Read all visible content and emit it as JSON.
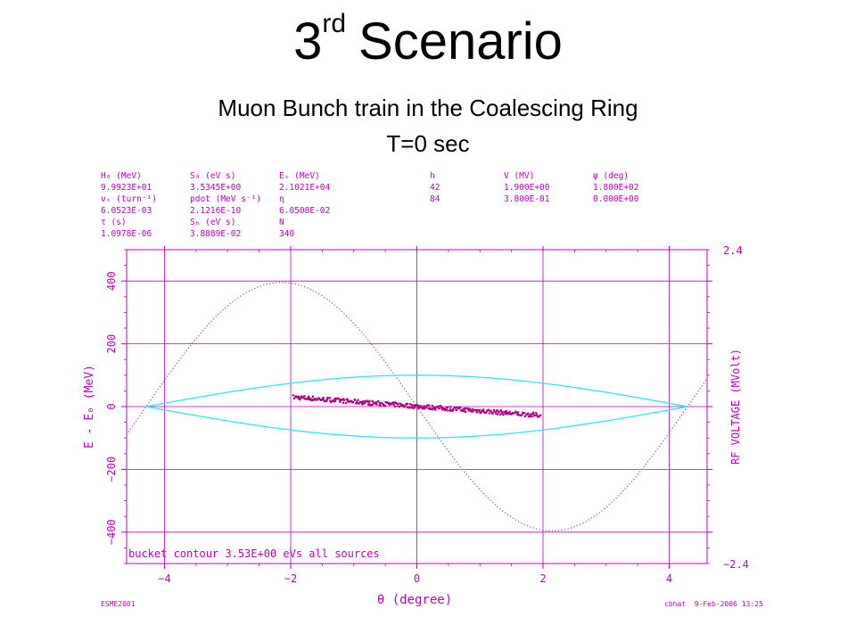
{
  "slide": {
    "title_main": "3",
    "title_sup": "rd",
    "title_rest": "Scenario",
    "subtitle_line1": "Muon Bunch train in the Coalescing Ring",
    "subtitle_line2": "T=0 sec"
  },
  "header_table": {
    "rows": [
      [
        "H₀ (MeV)",
        "S₀ (eV s)",
        "Eₛ (MeV)",
        "h",
        "V (MV)",
        "ψ (deg)"
      ],
      [
        "9.9923E+01",
        "3.5345E+00",
        "2.1021E+04",
        "42",
        "1.900E+00",
        "1.800E+02"
      ],
      [
        "νₛ (turn⁻¹)",
        "pdot (MeV s⁻¹)",
        "η",
        "84",
        "3.800E-01",
        "0.000E+00"
      ],
      [
        "6.0523E-03",
        "2.1216E-10",
        "6.0508E-02",
        "",
        "",
        ""
      ],
      [
        "τ (s)",
        "Sₕ (eV s)",
        "N",
        "",
        "",
        ""
      ],
      [
        "1.0978E-06",
        "3.8889E-02",
        "340",
        "",
        "",
        ""
      ]
    ]
  },
  "footer": {
    "left": "ESME2001",
    "right": "cbhat  9-Feb-2006 13:25"
  },
  "chart_data": {
    "type": "scatter",
    "xlabel": "θ (degree)",
    "ylabel": "E - E₀   (MeV)",
    "y2label": "RF VOLTAGE (MVolt)",
    "xlim": [
      -4.6,
      4.6
    ],
    "ylim": [
      -500,
      500
    ],
    "y2lim": [
      -2.4,
      2.4
    ],
    "x_ticks": [
      -4,
      -2,
      0,
      2,
      4
    ],
    "y_ticks": [
      -400,
      -200,
      0,
      200,
      400
    ],
    "y2_ticks": [
      "2.4",
      "−2.4"
    ],
    "annotation": "bucket contour 3.53E+00 eVs all sources",
    "grid": true,
    "colors": {
      "axes": "#c000c0",
      "bucket": "#2ee6f0",
      "particles": "#b00080",
      "rf_voltage": "#a040b0"
    },
    "bucket_contour": {
      "x_range": [
        -4.29,
        4.29
      ],
      "peak_energy": 100
    },
    "particles": {
      "x_range": [
        -1.95,
        1.95
      ],
      "energy_at_left": 30,
      "energy_at_right": -28,
      "count": 340
    },
    "rf_voltage": {
      "amplitude": 1.9,
      "shape": "-sin(theta)"
    }
  }
}
